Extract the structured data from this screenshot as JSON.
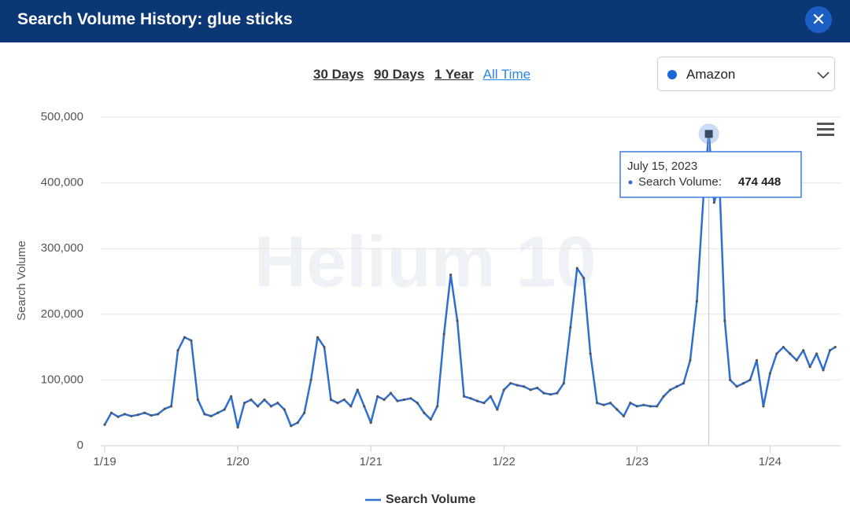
{
  "header": {
    "title": "Search Volume History: glue sticks"
  },
  "range_buttons": [
    "30 Days",
    "90 Days",
    "1 Year",
    "All Time"
  ],
  "marketplace": "Amazon",
  "watermark": "Helium 10",
  "chart_data": {
    "type": "line",
    "y_label": "Search Volume",
    "x": [
      2019.0,
      2019.05,
      2019.1,
      2019.15,
      2019.2,
      2019.25,
      2019.3,
      2019.35,
      2019.4,
      2019.45,
      2019.5,
      2019.55,
      2019.6,
      2019.65,
      2019.7,
      2019.75,
      2019.8,
      2019.85,
      2019.9,
      2019.95,
      2020.0,
      2020.05,
      2020.1,
      2020.15,
      2020.2,
      2020.25,
      2020.3,
      2020.35,
      2020.4,
      2020.45,
      2020.5,
      2020.55,
      2020.6,
      2020.65,
      2020.7,
      2020.75,
      2020.8,
      2020.85,
      2020.9,
      2020.95,
      2021.0,
      2021.05,
      2021.1,
      2021.15,
      2021.2,
      2021.25,
      2021.3,
      2021.35,
      2021.4,
      2021.45,
      2021.5,
      2021.55,
      2021.6,
      2021.65,
      2021.7,
      2021.75,
      2021.8,
      2021.85,
      2021.9,
      2021.95,
      2022.0,
      2022.05,
      2022.1,
      2022.15,
      2022.2,
      2022.25,
      2022.3,
      2022.35,
      2022.4,
      2022.45,
      2022.5,
      2022.55,
      2022.6,
      2022.65,
      2022.7,
      2022.75,
      2022.8,
      2022.85,
      2022.9,
      2022.95,
      2023.0,
      2023.05,
      2023.1,
      2023.15,
      2023.2,
      2023.25,
      2023.3,
      2023.35,
      2023.4,
      2023.45,
      2023.5,
      2023.54,
      2023.58,
      2023.62,
      2023.66,
      2023.7,
      2023.75,
      2023.8,
      2023.85,
      2023.9,
      2023.95,
      2024.0,
      2024.05,
      2024.1,
      2024.15,
      2024.2,
      2024.25,
      2024.3,
      2024.35,
      2024.4,
      2024.45,
      2024.49
    ],
    "series": [
      {
        "name": "Search Volume",
        "color": "#2f6fd0",
        "values": [
          32000,
          50000,
          44000,
          48000,
          45000,
          47000,
          50000,
          46000,
          48000,
          56000,
          60000,
          145000,
          165000,
          160000,
          70000,
          48000,
          45000,
          50000,
          55000,
          75000,
          28000,
          65000,
          70000,
          60000,
          70000,
          60000,
          65000,
          55000,
          30000,
          35000,
          50000,
          100000,
          165000,
          150000,
          70000,
          65000,
          70000,
          60000,
          85000,
          60000,
          35000,
          75000,
          70000,
          80000,
          68000,
          70000,
          72000,
          65000,
          50000,
          40000,
          60000,
          170000,
          260000,
          190000,
          75000,
          72000,
          68000,
          65000,
          75000,
          55000,
          85000,
          95000,
          92000,
          90000,
          85000,
          88000,
          80000,
          78000,
          80000,
          95000,
          180000,
          270000,
          255000,
          140000,
          65000,
          62000,
          65000,
          55000,
          45000,
          65000,
          60000,
          62000,
          60000,
          60000,
          75000,
          85000,
          90000,
          95000,
          130000,
          220000,
          380000,
          474448,
          370000,
          400000,
          190000,
          100000,
          90000,
          95000,
          100000,
          130000,
          60000,
          110000,
          140000,
          150000,
          140000,
          130000,
          145000,
          120000,
          140000,
          115000,
          145000,
          150000
        ]
      }
    ],
    "xlim": [
      2018.97,
      2024.53
    ],
    "xticks": [
      {
        "value": 2019,
        "label": "1/19"
      },
      {
        "value": 2020,
        "label": "1/20"
      },
      {
        "value": 2021,
        "label": "1/21"
      },
      {
        "value": 2022,
        "label": "1/22"
      },
      {
        "value": 2023,
        "label": "1/23"
      },
      {
        "value": 2024,
        "label": "1/24"
      }
    ],
    "ylim": [
      0,
      500000
    ],
    "yticks": [
      0,
      {
        "value": 100000,
        "label": "100,000"
      },
      {
        "value": 200000,
        "label": "200,000"
      },
      {
        "value": 300000,
        "label": "300,000"
      },
      {
        "value": 400000,
        "label": "400,000"
      },
      {
        "value": 500000,
        "label": "500,000"
      }
    ],
    "grid": true,
    "tooltip": {
      "title": "July 15, 2023",
      "label": "Search Volume:",
      "value": 474448,
      "value_label": "474 448"
    }
  }
}
